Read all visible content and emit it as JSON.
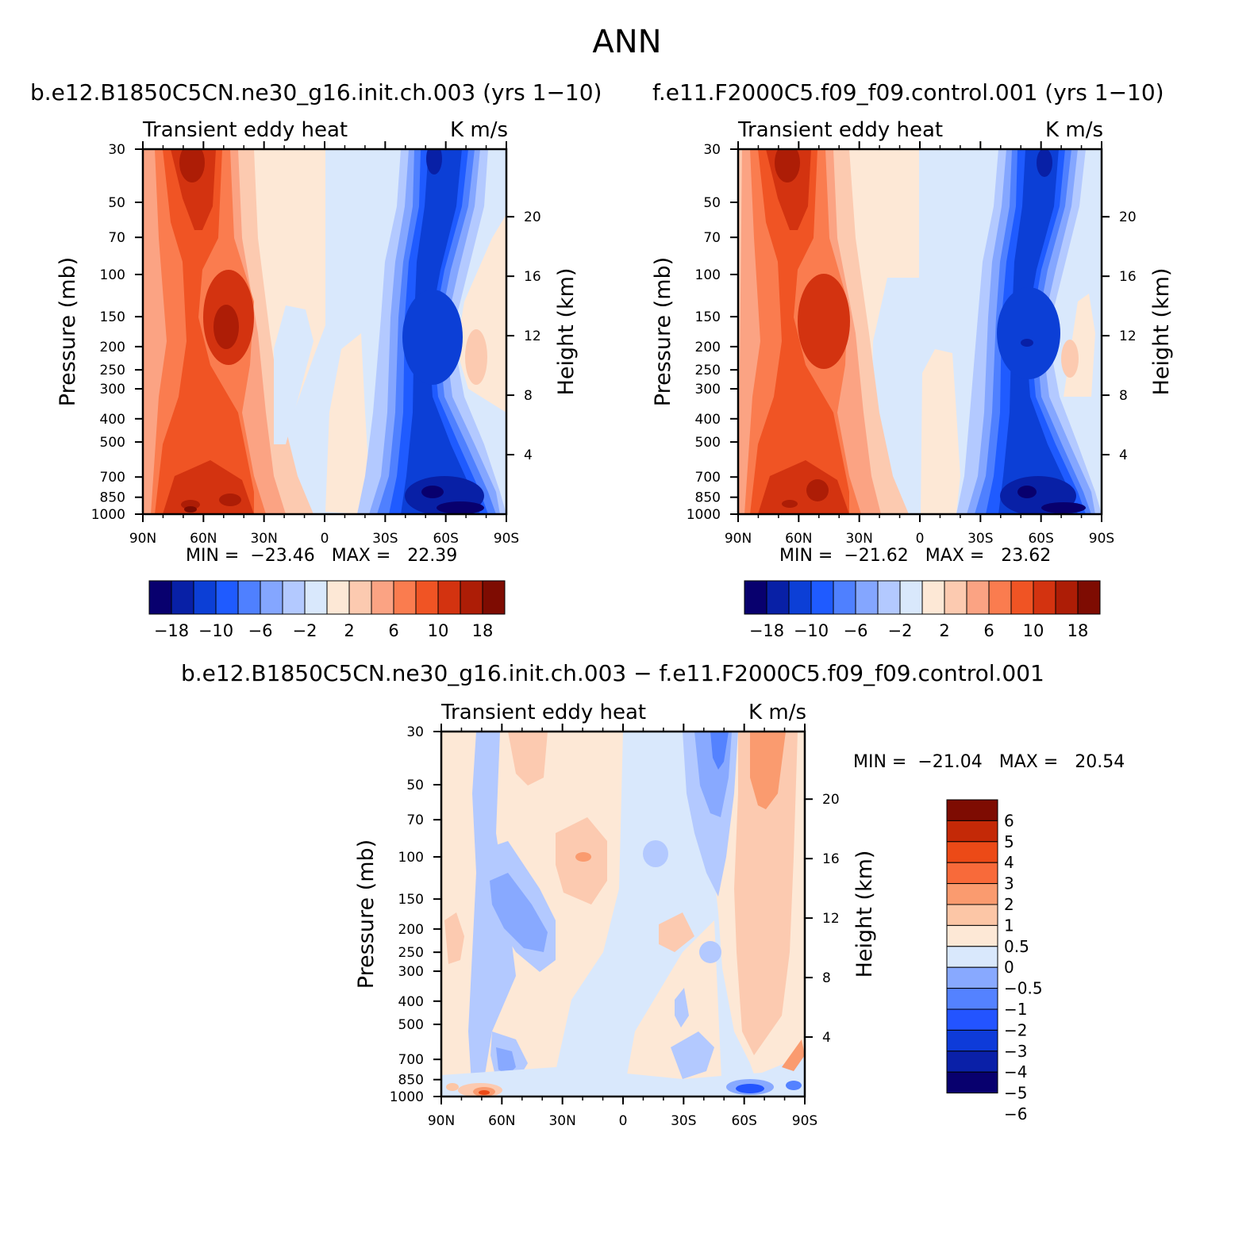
{
  "page": {
    "title": "ANN"
  },
  "colors": {
    "diverging16": [
      "#08006e",
      "#0820a6",
      "#0c3fd6",
      "#1f5bff",
      "#4f80ff",
      "#84a6ff",
      "#b3c9ff",
      "#d9e8fc",
      "#fde8d6",
      "#fccab0",
      "#fba383",
      "#fa7c4f",
      "#f05424",
      "#d33310",
      "#ad1d06",
      "#7e0c02"
    ],
    "diff14": [
      "#08006e",
      "#0a20a8",
      "#0e3bd9",
      "#2354ff",
      "#5482ff",
      "#88a9ff",
      "#d9e8fc",
      "#fde8d6",
      "#fcc6a6",
      "#fa9b6f",
      "#f86a3a",
      "#ec4a17",
      "#c42907",
      "#7e0c02"
    ]
  },
  "panels": [
    {
      "title": "b.e12.B1850C5CN.ne30_g16.init.ch.003 (yrs 1−10)",
      "left_label": "Transient eddy heat",
      "right_label": "K m/s",
      "stats": "MIN =  −23.46   MAX =   22.39"
    },
    {
      "title": "f.e11.F2000C5.f09_f09.control.001 (yrs 1−10)",
      "left_label": "Transient eddy heat",
      "right_label": "K m/s",
      "stats": "MIN =  −21.62   MAX =   23.62"
    },
    {
      "title": "b.e12.B1850C5CN.ne30_g16.init.ch.003 − f.e11.F2000C5.f09_f09.control.001",
      "left_label": "Transient eddy heat",
      "right_label": "K m/s",
      "stats": "MIN =  −21.04   MAX =   20.54"
    }
  ],
  "chart_data": [
    {
      "type": "heatmap",
      "title": "b.e12.B1850C5CN.ne30_g16.init.ch.003 (yrs 1−10)",
      "subtitle": "Transient eddy heat (K m/s)",
      "xlabel": "",
      "ylabel": "Pressure (mb)",
      "y2label": "Height (km)",
      "xticks": [
        "90N",
        "60N",
        "30N",
        "0",
        "30S",
        "60S",
        "90S"
      ],
      "yticks": [
        "30",
        "50",
        "70",
        "100",
        "150",
        "200",
        "250",
        "300",
        "400",
        "500",
        "700",
        "850",
        "1000"
      ],
      "y2ticks": [
        "20",
        "16",
        "12",
        "8",
        "4"
      ],
      "colorbar_labels": [
        "−18",
        "−10",
        "−6",
        "−2",
        "2",
        "6",
        "10",
        "18"
      ],
      "min": -23.46,
      "max": 22.39
    },
    {
      "type": "heatmap",
      "title": "f.e11.F2000C5.f09_f09.control.001 (yrs 1−10)",
      "subtitle": "Transient eddy heat (K m/s)",
      "xlabel": "",
      "ylabel": "Pressure (mb)",
      "y2label": "Height (km)",
      "xticks": [
        "90N",
        "60N",
        "30N",
        "0",
        "30S",
        "60S",
        "90S"
      ],
      "yticks": [
        "30",
        "50",
        "70",
        "100",
        "150",
        "200",
        "250",
        "300",
        "400",
        "500",
        "700",
        "850",
        "1000"
      ],
      "y2ticks": [
        "20",
        "16",
        "12",
        "8",
        "4"
      ],
      "colorbar_labels": [
        "−18",
        "−10",
        "−6",
        "−2",
        "2",
        "6",
        "10",
        "18"
      ],
      "min": -21.62,
      "max": 23.62
    },
    {
      "type": "heatmap",
      "title": "b.e12.B1850C5CN.ne30_g16.init.ch.003 − f.e11.F2000C5.f09_f09.control.001",
      "subtitle": "Transient eddy heat (K m/s)",
      "xlabel": "",
      "ylabel": "Pressure (mb)",
      "y2label": "Height (km)",
      "xticks": [
        "90N",
        "60N",
        "30N",
        "0",
        "30S",
        "60S",
        "90S"
      ],
      "yticks": [
        "30",
        "50",
        "70",
        "100",
        "150",
        "200",
        "250",
        "300",
        "400",
        "500",
        "700",
        "850",
        "1000"
      ],
      "y2ticks": [
        "20",
        "16",
        "12",
        "8",
        "4"
      ],
      "colorbar_labels": [
        "6",
        "5",
        "4",
        "3",
        "2",
        "1",
        "0.5",
        "0",
        "−0.5",
        "−1",
        "−2",
        "−3",
        "−4",
        "−5",
        "−6"
      ],
      "min": -21.04,
      "max": 20.54
    }
  ]
}
